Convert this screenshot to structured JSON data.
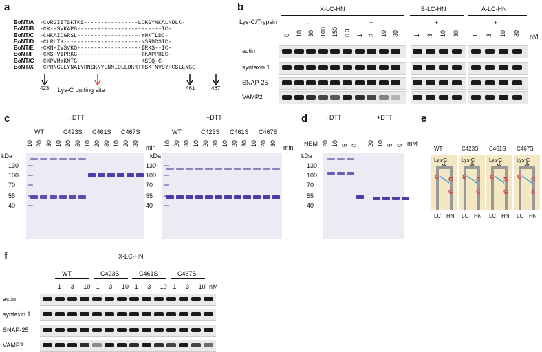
{
  "panel_labels": {
    "a": "a",
    "b": "b",
    "c": "c",
    "d": "d",
    "e": "e",
    "f": "f"
  },
  "panel_a": {
    "rows": [
      {
        "name": "BoNT/A",
        "seq": "-CVRGIITSKTKS----------------LDKGYNKALNDLC-"
      },
      {
        "name": "BoNT/B",
        "seq": "-CK--SVKAPG-------------------------IC-"
      },
      {
        "name": "BoNT/C",
        "seq": "-CHKAIDGRSL-------------------YNKTLDC-"
      },
      {
        "name": "BoNT/D",
        "seq": "-CLRLTK-----------------------NSRDDSTC-"
      },
      {
        "name": "BoNT/E",
        "seq": "-CKN-IVSVKG-------------------IRKS--IC-"
      },
      {
        "name": "BoNT/F",
        "seq": "-CKS-VIPRKG-------------------TKAPPRLC-"
      },
      {
        "name": "BoNT/G",
        "seq": "-CKPVMYKNTG-------------------KSEQ-C-"
      },
      {
        "name": "BoNT/X",
        "seq": "-CPRNGLLYNAIYRNSKNYLNNIDLEDKKTTSKTNVSYPCSLLNGC-"
      }
    ],
    "pos_423": "423",
    "pos_461": "461",
    "pos_467": "467",
    "cut_label": "Lys-C cutting site"
  },
  "panel_b": {
    "group_x": "X-LC-HN",
    "group_b": "B-LC-HN",
    "group_a": "A-LC-HN",
    "treat_label": "Lys-C/Trypsin",
    "minus": "–",
    "plus": "+",
    "unit": "nM",
    "lanes_x": [
      "0",
      "10",
      "30",
      "100",
      "150",
      "0.3",
      "1",
      "3",
      "10",
      "30"
    ],
    "lanes_b": [
      "1",
      "3",
      "10",
      "30"
    ],
    "lanes_a": [
      "1",
      "3",
      "10",
      "30"
    ],
    "rows": [
      "actin",
      "syntaxin 1",
      "SNAP-25",
      "VAMP2"
    ]
  },
  "panel_c": {
    "minus_dtt": "–DTT",
    "plus_dtt": "+DTT",
    "kda": "kDa",
    "min": "min",
    "groups": [
      "WT",
      "C423S",
      "C461S",
      "C467S"
    ],
    "times": [
      "10",
      "20",
      "30",
      "10",
      "20",
      "30",
      "10",
      "20",
      "30",
      "10",
      "20",
      "30"
    ],
    "markers": [
      "130",
      "100",
      "70",
      "55",
      "40"
    ],
    "star": "*"
  },
  "panel_d": {
    "minus_dtt": "–DTT",
    "plus_dtt": "+DTT",
    "nem": "NEM",
    "mm": "mM",
    "kda": "kDa",
    "lanes": [
      "20",
      "10",
      "5",
      "0",
      "20",
      "10",
      "5",
      "0"
    ],
    "markers": [
      "130",
      "100",
      "70",
      "55",
      "40"
    ]
  },
  "panel_e": {
    "cols": [
      {
        "title": "WT",
        "top": "C",
        "b1": "C",
        "b2": "C"
      },
      {
        "title": "C423S",
        "top": "S",
        "b1": "C",
        "b2": "C"
      },
      {
        "title": "C461S",
        "top": "C",
        "b1": "S",
        "b2": "C"
      },
      {
        "title": "C467S",
        "top": "C",
        "b1": "C",
        "b2": "S"
      }
    ],
    "lysc": "Lys-C",
    "lc": "LC",
    "hn": "HN"
  },
  "panel_f": {
    "group": "X-LC-HN",
    "groups": [
      "WT",
      "C423S",
      "C461S",
      "C467S"
    ],
    "lanes": [
      "1",
      "3",
      "10",
      "1",
      "3",
      "10",
      "1",
      "3",
      "10",
      "1",
      "3",
      "10"
    ],
    "unit": "nM",
    "rows": [
      "actin",
      "syntaxin 1",
      "SNAP-25",
      "VAMP2"
    ]
  }
}
